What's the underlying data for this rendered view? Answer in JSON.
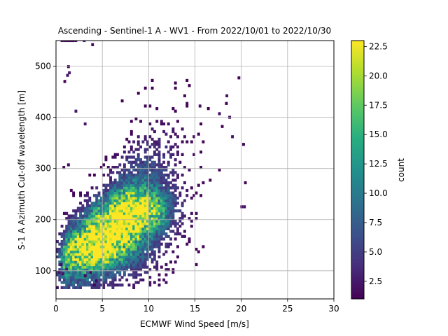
{
  "chart_data": {
    "type": "heatmap",
    "title": "Ascending - Sentinel-1 A - WV1 - From 2022/10/01 to 2022/10/30",
    "xlabel": "ECMWF Wind Speed [m/s]",
    "ylabel": "S-1 A Azimuth Cut-off wavelength [m]",
    "xlim": [
      0,
      30
    ],
    "ylim": [
      45,
      550
    ],
    "xticks": [
      0,
      5,
      10,
      15,
      20,
      25,
      30
    ],
    "yticks": [
      100,
      200,
      300,
      400,
      500
    ],
    "grid": true,
    "colorbar": {
      "label": "count",
      "colormap": "viridis",
      "range": [
        1,
        23
      ],
      "ticks": [
        2.5,
        5.0,
        7.5,
        10.0,
        12.5,
        15.0,
        17.5,
        20.0,
        22.5
      ],
      "tick_labels": [
        "2.5",
        "5.0",
        "7.5",
        "10.0",
        "12.5",
        "15.0",
        "17.5",
        "20.0",
        "22.5"
      ]
    },
    "density_model": {
      "x_bin_width": 0.25,
      "y_bin_width": 5,
      "peak_count": 22,
      "ridge": [
        [
          0.5,
          110
        ],
        [
          3,
          135
        ],
        [
          5,
          160
        ],
        [
          7,
          195
        ],
        [
          10,
          225
        ],
        [
          13,
          265
        ],
        [
          16,
          300
        ],
        [
          19,
          340
        ]
      ],
      "core_centers": [
        [
          7.2,
          200
        ],
        [
          8.7,
          215
        ],
        [
          6.0,
          180
        ],
        [
          4.5,
          150
        ]
      ]
    },
    "sparse_points": [
      [
        0.5,
        548
      ],
      [
        0.8,
        548
      ],
      [
        1.1,
        548
      ],
      [
        1.4,
        548
      ],
      [
        1.7,
        548
      ],
      [
        2.0,
        548
      ],
      [
        2.9,
        548
      ],
      [
        3.8,
        540
      ],
      [
        1.1,
        480
      ],
      [
        1.3,
        485
      ],
      [
        1.2,
        497
      ],
      [
        0.8,
        468
      ],
      [
        2.0,
        410
      ],
      [
        3.0,
        385
      ],
      [
        0.7,
        300
      ],
      [
        1.2,
        305
      ],
      [
        19.6,
        475
      ],
      [
        20.1,
        345
      ],
      [
        20.3,
        270
      ],
      [
        19.9,
        223
      ],
      [
        20.2,
        223
      ],
      [
        18.3,
        440
      ],
      [
        17.5,
        405
      ],
      [
        18.6,
        398
      ],
      [
        14.0,
        425
      ],
      [
        15.4,
        420
      ],
      [
        16.3,
        415
      ],
      [
        17.8,
        380
      ],
      [
        18.9,
        360
      ],
      [
        0.2,
        95
      ],
      [
        0.6,
        92
      ],
      [
        1.0,
        100
      ],
      [
        3.0,
        88
      ],
      [
        4.0,
        70
      ],
      [
        4.2,
        78
      ],
      [
        3.6,
        95
      ],
      [
        0.4,
        110
      ]
    ]
  }
}
